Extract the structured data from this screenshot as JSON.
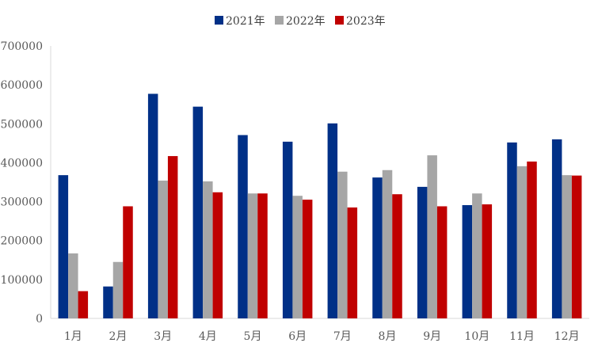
{
  "chart_data": {
    "type": "bar",
    "categories": [
      "1月",
      "2月",
      "3月",
      "4月",
      "5月",
      "6月",
      "7月",
      "8月",
      "9月",
      "10月",
      "11月",
      "12月"
    ],
    "series": [
      {
        "name": "2021年",
        "color": "#003087",
        "values": [
          368000,
          82000,
          577000,
          544000,
          471000,
          454000,
          501000,
          362000,
          338000,
          291000,
          452000,
          460000
        ]
      },
      {
        "name": "2022年",
        "color": "#A6A6A6",
        "values": [
          167000,
          145000,
          354000,
          352000,
          321000,
          315000,
          377000,
          381000,
          419000,
          321000,
          391000,
          368000
        ]
      },
      {
        "name": "2023年",
        "color": "#C00000",
        "values": [
          70000,
          288000,
          417000,
          324000,
          321000,
          305000,
          285000,
          319000,
          288000,
          293000,
          403000,
          367000
        ]
      }
    ],
    "yticks": [
      "0",
      "100000",
      "200000",
      "300000",
      "400000",
      "500000",
      "600000",
      "700000"
    ],
    "ylim": [
      0,
      700000
    ],
    "grid": false,
    "legend_position": "top-center"
  }
}
